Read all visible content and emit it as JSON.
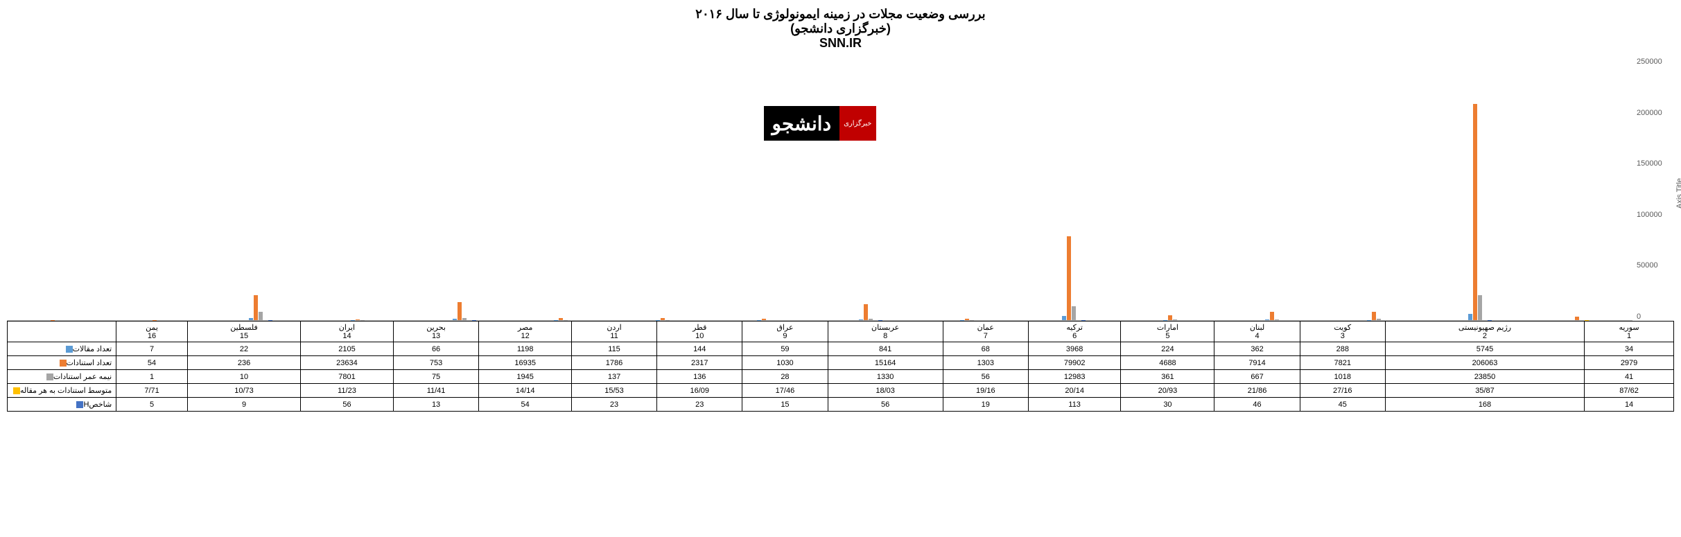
{
  "titles": {
    "line1": "بررسی وضعیت مجلات در زمینه ایمونولوژی تا سال ۲۰۱۶",
    "line2": "(خبرگزاری دانشجو)",
    "line3": "SNN.IR"
  },
  "y_axis": {
    "label": "Axis Title",
    "ticks": [
      "0",
      "50000",
      "100000",
      "150000",
      "200000",
      "250000"
    ],
    "max": 250000
  },
  "series": [
    {
      "key": "s1",
      "label": "تعداد مقالات",
      "color": "#5b9bd5"
    },
    {
      "key": "s2",
      "label": "تعداد استنادات",
      "color": "#ed7d31"
    },
    {
      "key": "s3",
      "label": "نیمه عمر استنادات",
      "color": "#a5a5a5"
    },
    {
      "key": "s4",
      "label": "متوسط استنادات به هر مقاله",
      "color": "#ffc000"
    },
    {
      "key": "s5",
      "label": "شاخصH",
      "color": "#4472c4"
    }
  ],
  "countries": [
    {
      "name": "سوریه",
      "idx": "1",
      "s1": "34",
      "s2": "2979",
      "s3": "41",
      "s4": "87/62",
      "s5": "14"
    },
    {
      "name": "رژیم صهیونیستی",
      "idx": "2",
      "s1": "5745",
      "s2": "206063",
      "s3": "23850",
      "s4": "35/87",
      "s5": "168"
    },
    {
      "name": "کویت",
      "idx": "3",
      "s1": "288",
      "s2": "7821",
      "s3": "1018",
      "s4": "27/16",
      "s5": "45"
    },
    {
      "name": "لبنان",
      "idx": "4",
      "s1": "362",
      "s2": "7914",
      "s3": "667",
      "s4": "21/86",
      "s5": "46"
    },
    {
      "name": "امارات",
      "idx": "5",
      "s1": "224",
      "s2": "4688",
      "s3": "361",
      "s4": "20/93",
      "s5": "30"
    },
    {
      "name": "ترکیه",
      "idx": "6",
      "s1": "3968",
      "s2": "79902",
      "s3": "12983",
      "s4": "20/14",
      "s5": "113"
    },
    {
      "name": "عمان",
      "idx": "7",
      "s1": "68",
      "s2": "1303",
      "s3": "56",
      "s4": "19/16",
      "s5": "19"
    },
    {
      "name": "عربستان",
      "idx": "8",
      "s1": "841",
      "s2": "15164",
      "s3": "1330",
      "s4": "18/03",
      "s5": "56"
    },
    {
      "name": "عراق",
      "idx": "9",
      "s1": "59",
      "s2": "1030",
      "s3": "28",
      "s4": "17/46",
      "s5": "15"
    },
    {
      "name": "قطر",
      "idx": "10",
      "s1": "144",
      "s2": "2317",
      "s3": "136",
      "s4": "16/09",
      "s5": "23"
    },
    {
      "name": "اردن",
      "idx": "11",
      "s1": "115",
      "s2": "1786",
      "s3": "137",
      "s4": "15/53",
      "s5": "23"
    },
    {
      "name": "مصر",
      "idx": "12",
      "s1": "1198",
      "s2": "16935",
      "s3": "1945",
      "s4": "14/14",
      "s5": "54"
    },
    {
      "name": "بحرین",
      "idx": "13",
      "s1": "66",
      "s2": "753",
      "s3": "75",
      "s4": "11/41",
      "s5": "13"
    },
    {
      "name": "ایران",
      "idx": "14",
      "s1": "2105",
      "s2": "23634",
      "s3": "7801",
      "s4": "11/23",
      "s5": "56"
    },
    {
      "name": "فلسطین",
      "idx": "15",
      "s1": "22",
      "s2": "236",
      "s3": "10",
      "s4": "10/73",
      "s5": "9"
    },
    {
      "name": "یمن",
      "idx": "16",
      "s1": "7",
      "s2": "54",
      "s3": "1",
      "s4": "7/71",
      "s5": "5"
    }
  ],
  "logo": {
    "red_text": "خبرگزاری",
    "black_text": "دانشجو"
  }
}
